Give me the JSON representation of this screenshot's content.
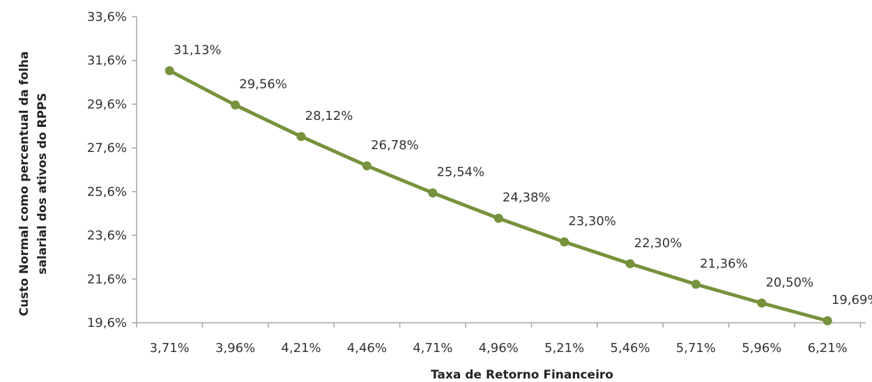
{
  "chart_data": {
    "type": "line",
    "title": "",
    "xlabel": "Taxa de Retorno Financeiro",
    "ylabel": [
      "Custo Normal como percentual da folha",
      "salarial dos ativos do RPPS"
    ],
    "categories": [
      "3,71%",
      "3,96%",
      "4,21%",
      "4,46%",
      "4,71%",
      "4,96%",
      "5,21%",
      "5,46%",
      "5,71%",
      "5,96%",
      "6,21%"
    ],
    "series": [
      {
        "values": [
          31.13,
          29.56,
          28.12,
          26.78,
          25.54,
          24.38,
          23.3,
          22.3,
          21.36,
          20.5,
          19.69
        ],
        "labels": [
          "31,13%",
          "29,56%",
          "28,12%",
          "26,78%",
          "25,54%",
          "24,38%",
          "23,30%",
          "22,30%",
          "21,36%",
          "20,50%",
          "19,69%"
        ],
        "color": "#76923c"
      }
    ],
    "ylim": [
      19.6,
      33.6
    ],
    "yticks": [
      19.6,
      21.6,
      23.6,
      25.6,
      27.6,
      29.6,
      31.6,
      33.6
    ],
    "ytick_labels": [
      "19,6%",
      "21,6%",
      "23,6%",
      "25,6%",
      "27,6%",
      "29,6%",
      "31,6%",
      "33,6%"
    ],
    "grid": false,
    "legend": "none"
  }
}
